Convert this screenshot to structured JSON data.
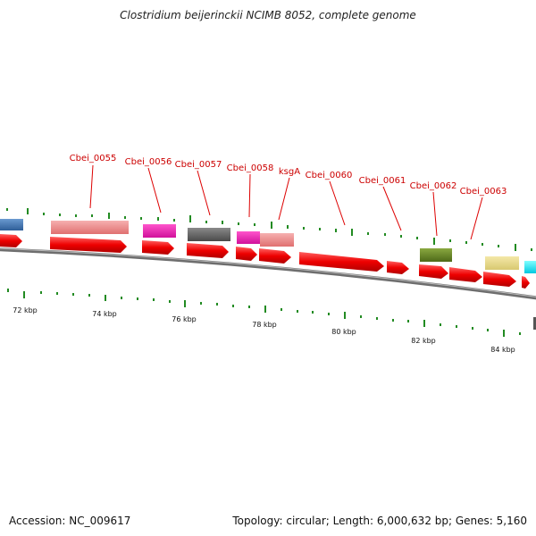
{
  "title": "Clostridium beijerinckii NCIMB 8052, complete genome",
  "accession_line": "Accession: NC_009617",
  "topology_line": "Topology: circular; Length: 6,000,632 bp; Genes: 5,160",
  "colors": {
    "cds": "#ff0000",
    "backbone": "#7a7a7a",
    "gc_ticks": "#228b22",
    "label": "#cc0000"
  },
  "gene_labels": [
    "Cbei_0055",
    "Cbei_0056",
    "Cbei_0057",
    "Cbei_0058",
    "ksgA",
    "Cbei_0060",
    "Cbei_0061",
    "Cbei_0062",
    "Cbei_0063"
  ],
  "kbp_labels": [
    "72 kbp",
    "74 kbp",
    "76 kbp",
    "78 kbp",
    "80 kbp",
    "82 kbp",
    "84 kbp"
  ]
}
